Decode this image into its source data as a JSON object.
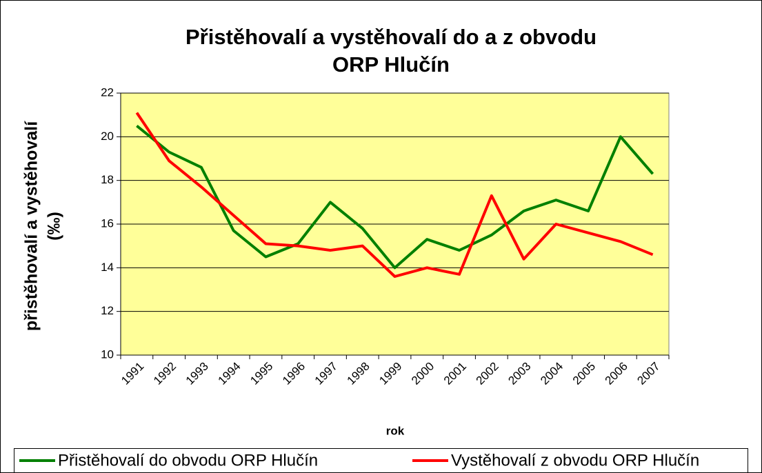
{
  "chart_data": {
    "type": "line",
    "title": [
      "Přistěhovalí a vystěhovalí do a z obvodu",
      "ORP Hlučín"
    ],
    "ylabel": [
      "přistěhovalí a vystěhovalí",
      "(‰)"
    ],
    "xlabel": "rok",
    "categories": [
      "1991",
      "1992",
      "1993",
      "1994",
      "1995",
      "1996",
      "1997",
      "1998",
      "1999",
      "2000",
      "2001",
      "2002",
      "2003",
      "2004",
      "2005",
      "2006",
      "2007"
    ],
    "series": [
      {
        "name": "Přistěhovalí do obvodu ORP Hlučín",
        "color": "#008000",
        "values": [
          20.5,
          19.3,
          18.6,
          15.7,
          14.5,
          15.1,
          17.0,
          15.8,
          14.0,
          15.3,
          14.8,
          15.5,
          16.6,
          17.1,
          16.6,
          20.0,
          18.3
        ]
      },
      {
        "name": "Vystěhovalí z obvodu ORP Hlučín",
        "color": "#ff0000",
        "values": [
          21.1,
          18.9,
          17.7,
          16.4,
          15.1,
          15.0,
          14.8,
          15.0,
          13.6,
          14.0,
          13.7,
          17.3,
          14.4,
          16.0,
          15.6,
          15.2,
          14.6
        ]
      }
    ],
    "ylim": [
      10,
      22
    ],
    "yticks": [
      10,
      12,
      14,
      16,
      18,
      20,
      22
    ],
    "grid": true,
    "legend": "bottom",
    "plot_background": "#ffff99"
  }
}
